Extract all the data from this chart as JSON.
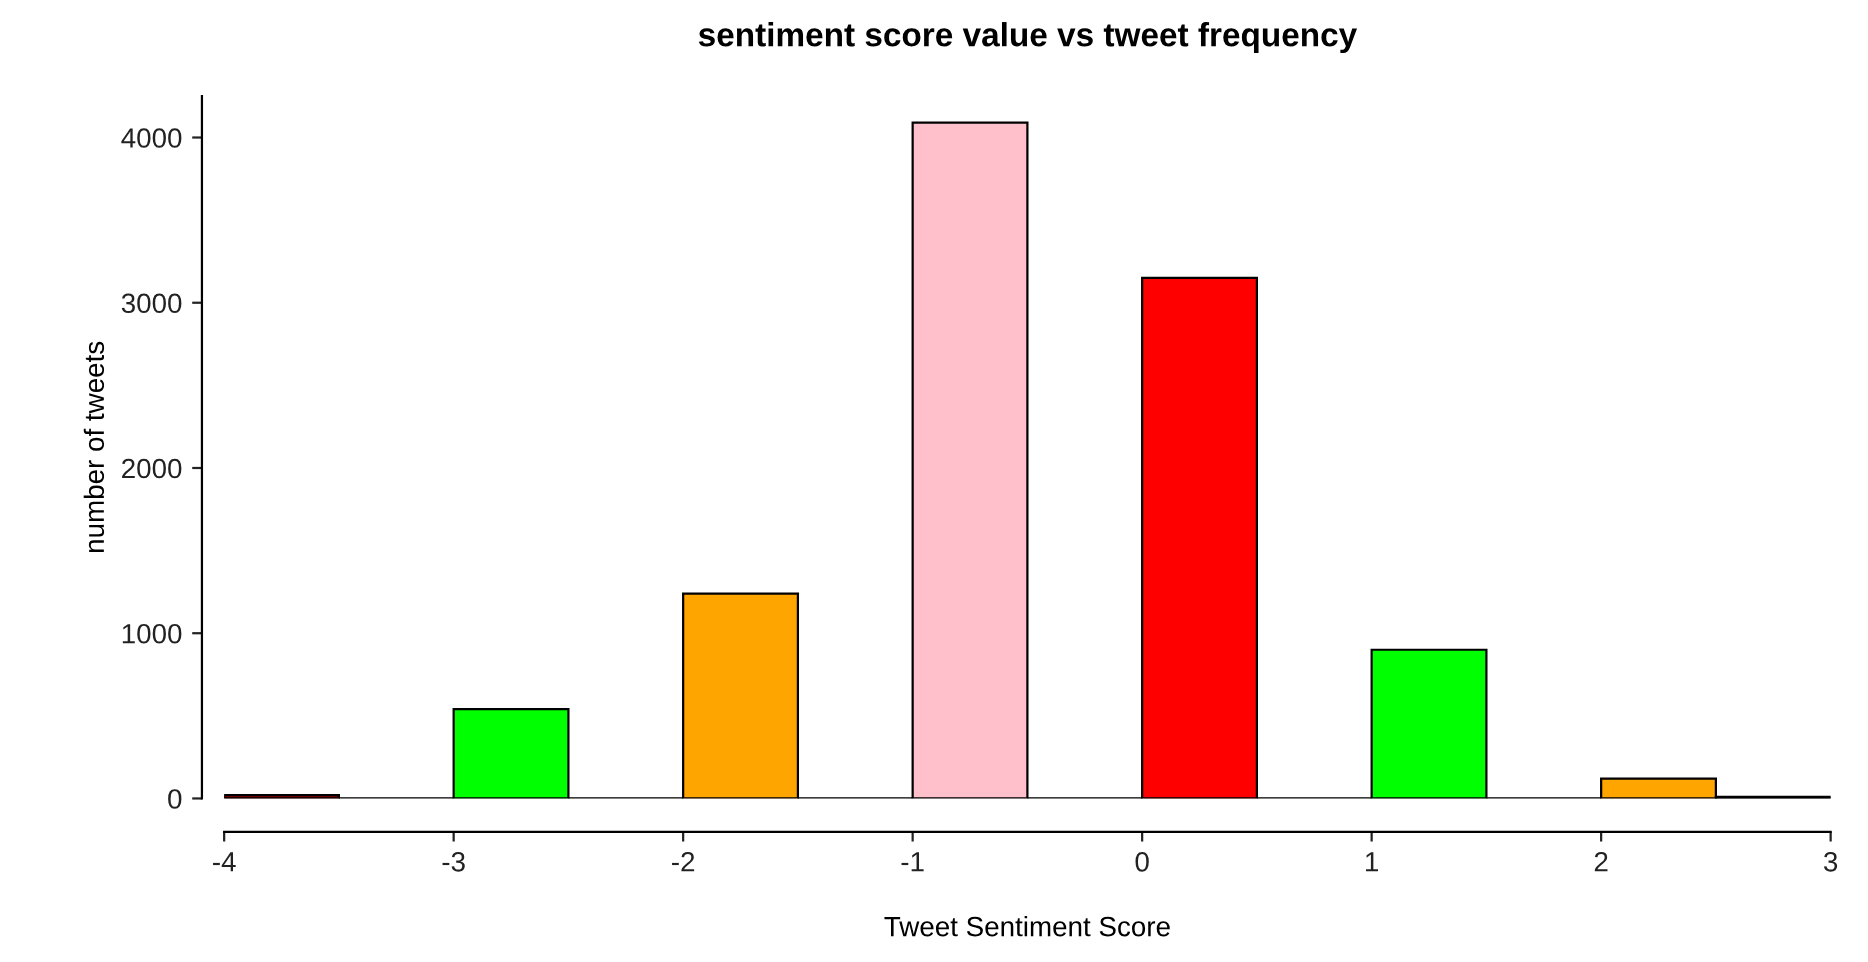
{
  "chart_data": {
    "type": "histogram",
    "title": "sentiment score value vs tweet frequency",
    "xlabel": "Tweet Sentiment Score",
    "ylabel": "number of tweets",
    "bins": [
      -4,
      -3.5,
      -3,
      -2.5,
      -2,
      -1.5,
      -1,
      -0.5,
      0,
      0.5,
      1,
      1.5,
      2,
      2.5,
      3
    ],
    "values": [
      20,
      0,
      540,
      0,
      1240,
      0,
      4090,
      0,
      3150,
      0,
      900,
      0,
      120,
      10
    ],
    "colors": [
      "#8b0000",
      "#000000",
      "#00ff00",
      "#000000",
      "#ffa500",
      "#000000",
      "#ffc0cb",
      "#000000",
      "#ff0000",
      "#000000",
      "#00ff00",
      "#000000",
      "#ffa500",
      "#000000"
    ],
    "xlim": [
      -4,
      3
    ],
    "ylim": [
      0,
      4250
    ],
    "xticks": [
      -4,
      -3,
      -2,
      -1,
      0,
      1,
      2,
      3
    ],
    "yticks": [
      0,
      1000,
      2000,
      3000,
      4000
    ],
    "grid": false
  }
}
